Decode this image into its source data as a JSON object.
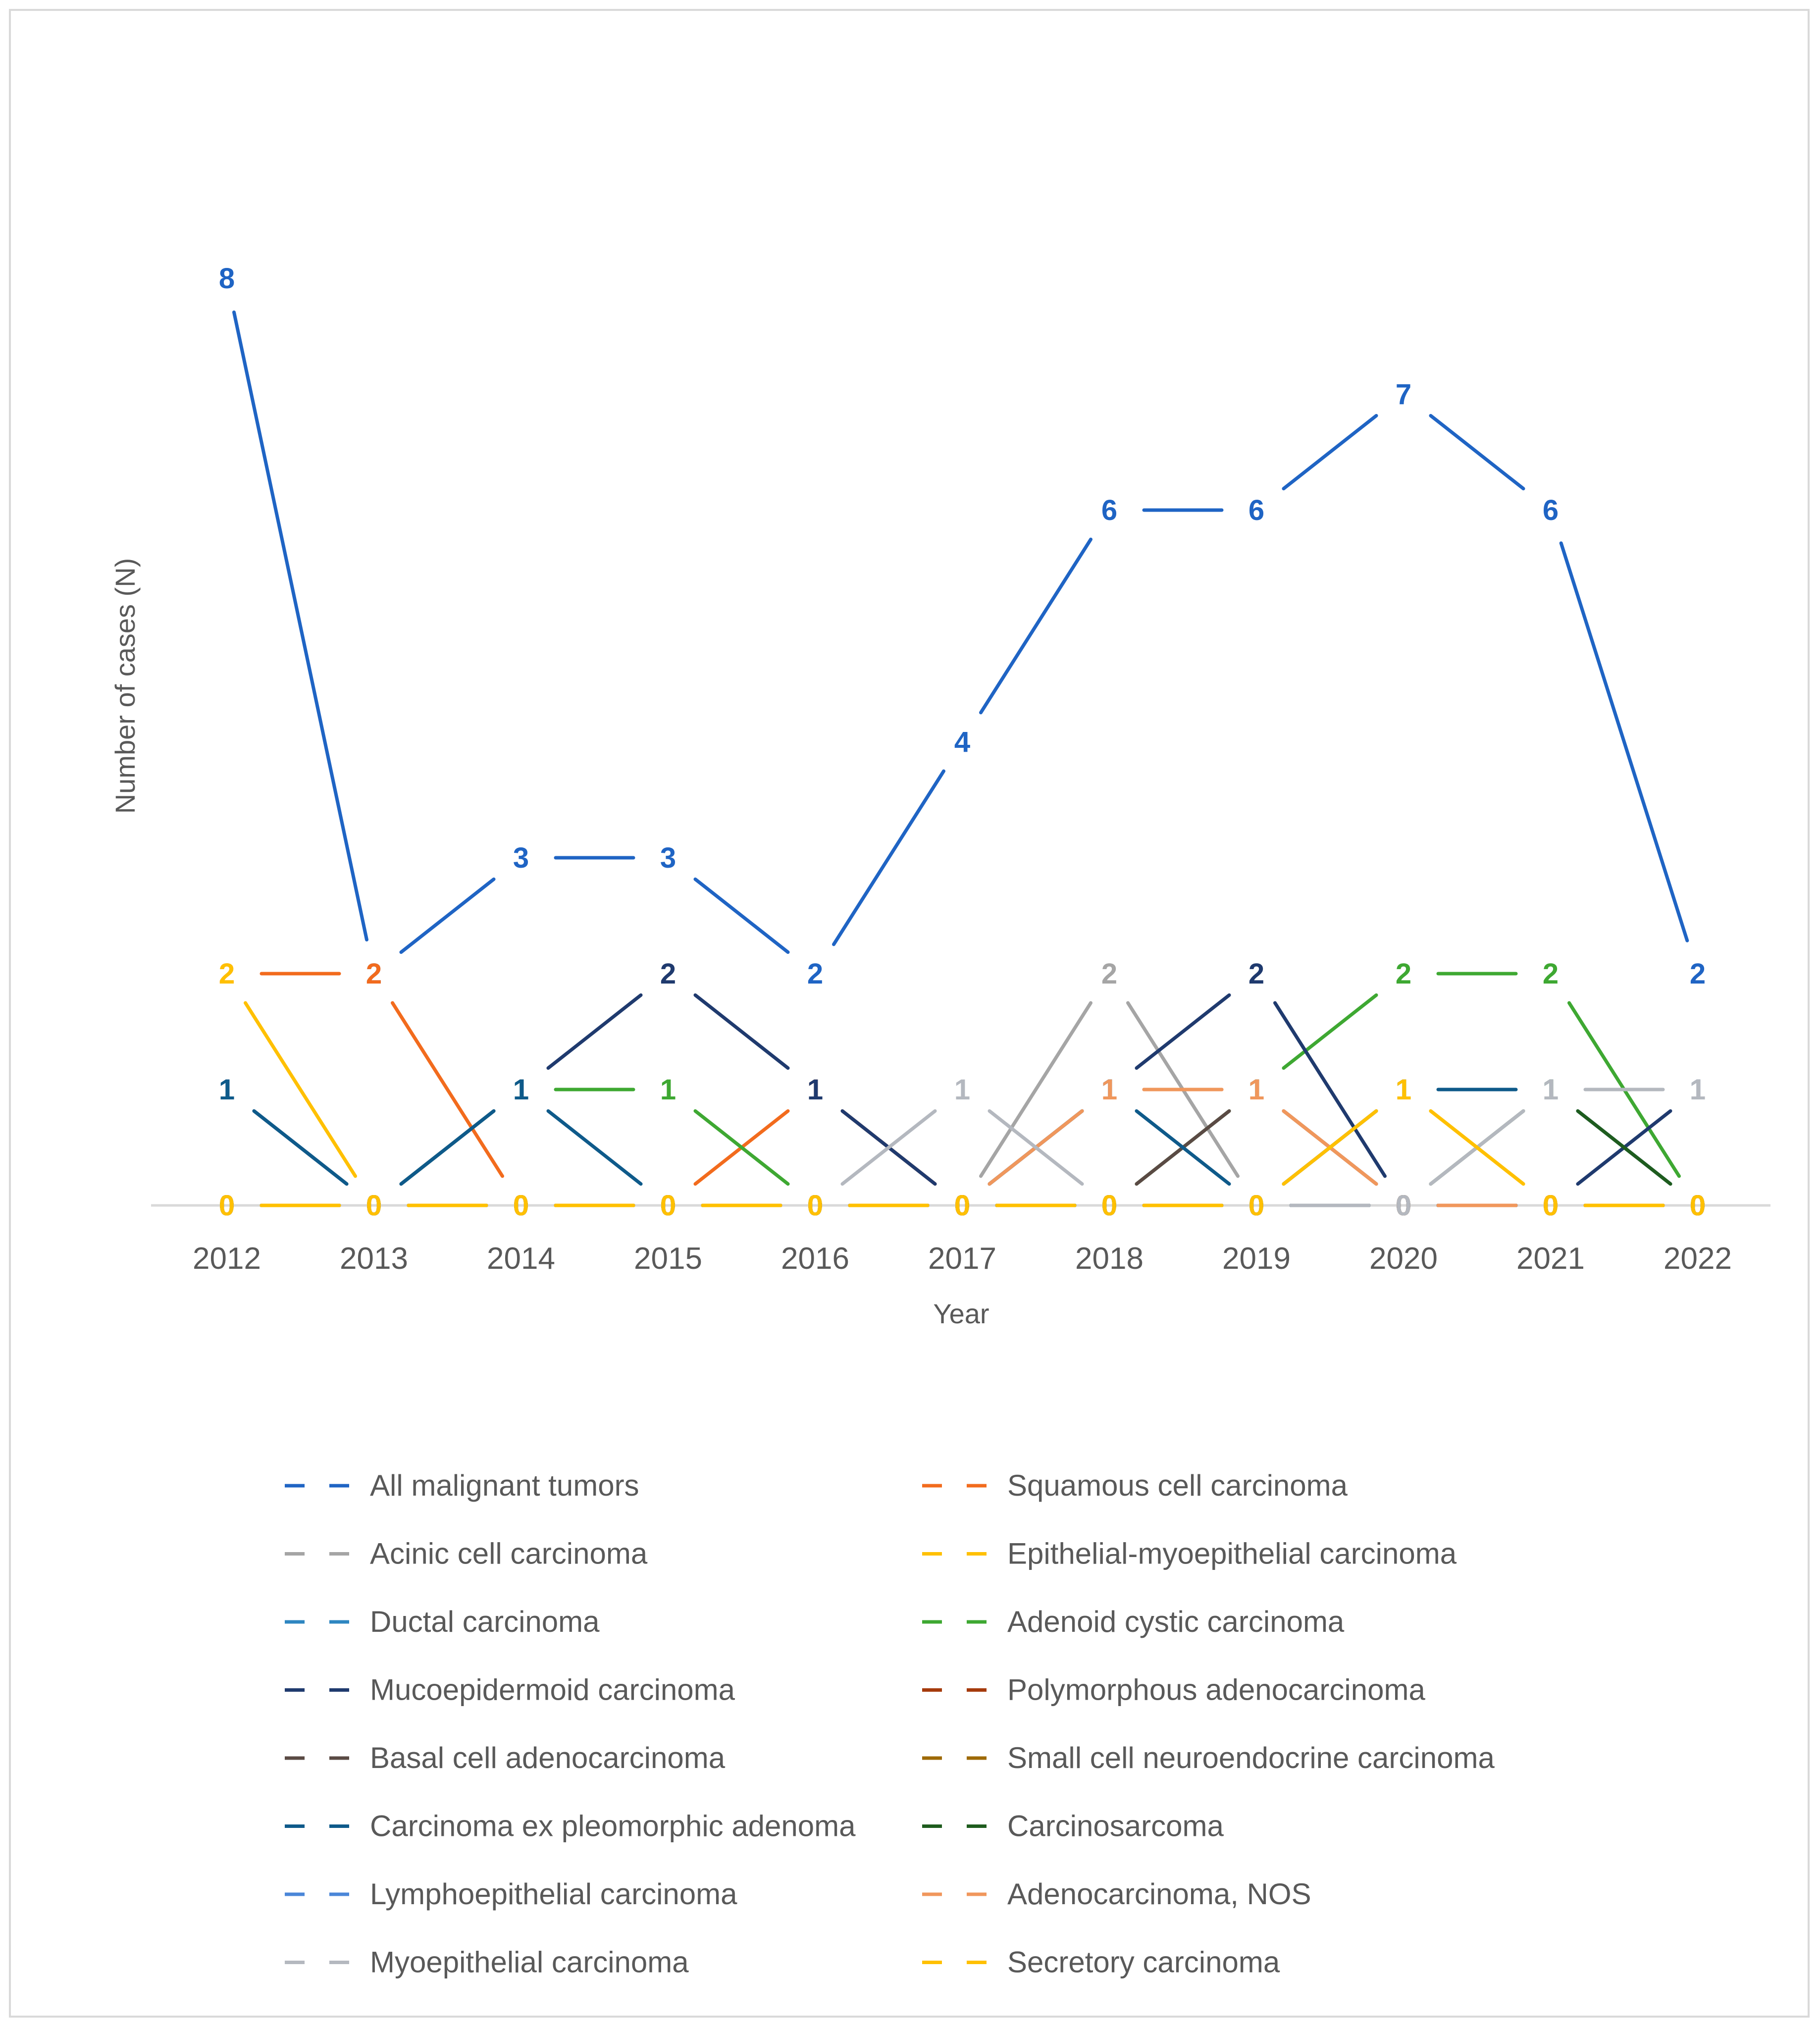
{
  "chart_data": {
    "type": "line",
    "title": "",
    "xlabel": "Year",
    "ylabel": "Number of cases (N)",
    "ylim": [
      0,
      8
    ],
    "grid": false,
    "legend_position": "bottom",
    "categories": [
      "2012",
      "2013",
      "2014",
      "2015",
      "2016",
      "2017",
      "2018",
      "2019",
      "2020",
      "2021",
      "2022"
    ],
    "series": [
      {
        "name": "All malignant tumors",
        "color": "#1f64c4",
        "values": [
          8,
          2,
          3,
          3,
          2,
          4,
          6,
          6,
          7,
          6,
          2
        ]
      },
      {
        "name": "Squamous cell carcinoma",
        "color": "#f26b1d",
        "values": [
          2,
          2,
          0,
          0,
          1,
          0,
          1,
          1,
          0,
          0,
          0
        ]
      },
      {
        "name": "Acinic cell carcinoma",
        "color": "#a5a5a5",
        "values": [
          0,
          0,
          0,
          0,
          0,
          0,
          2,
          0,
          0,
          0,
          0
        ]
      },
      {
        "name": "Epithelial-myoepithelial carcinoma",
        "color": "#ffc000",
        "values": [
          2,
          0,
          0,
          0,
          0,
          0,
          0,
          0,
          1,
          0,
          0
        ]
      },
      {
        "name": "Ductal carcinoma",
        "color": "#2e86c1",
        "values": [
          0,
          0,
          0,
          0,
          0,
          0,
          0,
          0,
          0,
          0,
          0
        ]
      },
      {
        "name": "Adenoid cystic carcinoma",
        "color": "#3ea832",
        "values": [
          0,
          0,
          1,
          1,
          0,
          0,
          0,
          1,
          2,
          2,
          0
        ]
      },
      {
        "name": "Mucoepidermoid carcinoma",
        "color": "#1f3a6e",
        "values": [
          1,
          0,
          1,
          2,
          1,
          0,
          1,
          2,
          0,
          0,
          1
        ]
      },
      {
        "name": "Polymorphous adenocarcinoma",
        "color": "#a53a0c",
        "values": [
          0,
          0,
          0,
          0,
          0,
          0,
          0,
          0,
          0,
          0,
          0
        ]
      },
      {
        "name": "Basal cell adenocarcinoma",
        "color": "#5a4a44",
        "values": [
          0,
          0,
          0,
          0,
          0,
          0,
          0,
          1,
          0,
          0,
          0
        ]
      },
      {
        "name": "Small cell neuroendocrine carcinoma",
        "color": "#9e6a06",
        "values": [
          0,
          0,
          0,
          0,
          0,
          0,
          0,
          0,
          0,
          0,
          0
        ]
      },
      {
        "name": "Carcinoma ex pleomorphic adenoma",
        "color": "#0e5a8a",
        "values": [
          1,
          0,
          1,
          0,
          0,
          0,
          1,
          0,
          1,
          1,
          0
        ]
      },
      {
        "name": "Carcinosarcoma",
        "color": "#1e5c1e",
        "values": [
          0,
          0,
          0,
          0,
          0,
          0,
          0,
          0,
          0,
          1,
          0
        ]
      },
      {
        "name": "Lymphoepithelial carcinoma",
        "color": "#4a86d8",
        "values": [
          0,
          0,
          0,
          0,
          0,
          0,
          0,
          0,
          0,
          0,
          0
        ]
      },
      {
        "name": "Adenocarcinoma, NOS",
        "color": "#f0975c",
        "values": [
          0,
          0,
          0,
          0,
          0,
          0,
          1,
          1,
          0,
          0,
          0
        ]
      },
      {
        "name": "Myoepithelial carcinoma",
        "color": "#b4b8bf",
        "values": [
          0,
          0,
          0,
          0,
          0,
          1,
          0,
          0,
          0,
          1,
          1
        ]
      },
      {
        "name": "Secretory carcinoma",
        "color": "#ffc000",
        "values": [
          0,
          0,
          0,
          0,
          0,
          0,
          0,
          0,
          1,
          0,
          0
        ]
      }
    ]
  }
}
